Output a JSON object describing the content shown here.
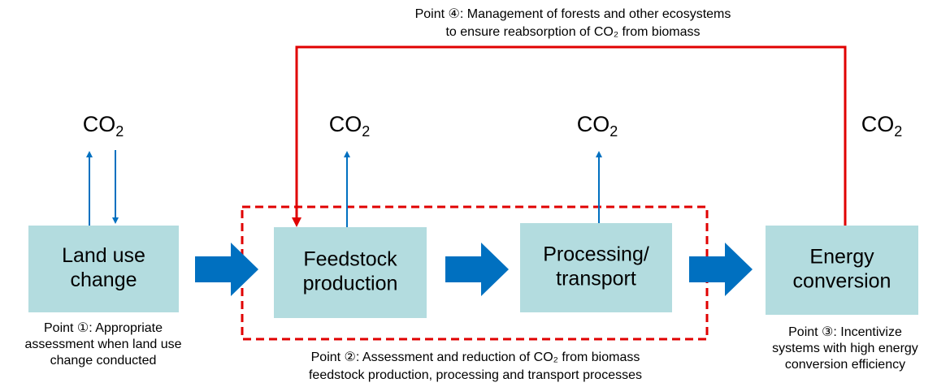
{
  "nodes": [
    {
      "label": [
        "Land use",
        "change"
      ],
      "co2": {
        "main": "CO",
        "sub": "2"
      },
      "note": [
        "Point ①: Appropriate",
        "assessment when land use",
        "change conducted"
      ]
    },
    {
      "label": [
        "Feedstock",
        "production"
      ],
      "co2": {
        "main": "CO",
        "sub": "2"
      }
    },
    {
      "label": [
        "Processing/",
        "transport"
      ],
      "co2": {
        "main": "CO",
        "sub": "2"
      }
    },
    {
      "label": [
        "Energy",
        "conversion"
      ],
      "co2": {
        "main": "CO",
        "sub": "2"
      },
      "note": [
        "Point ③: Incentivize",
        "systems with high energy",
        "conversion efficiency"
      ]
    }
  ],
  "point2": [
    "Point ②: Assessment and reduction of CO₂ from biomass",
    "feedstock production, processing and transport processes"
  ],
  "point4": [
    "Point ④: Management of forests and other ecosystems",
    "to ensure reabsorption of CO₂ from biomass"
  ]
}
